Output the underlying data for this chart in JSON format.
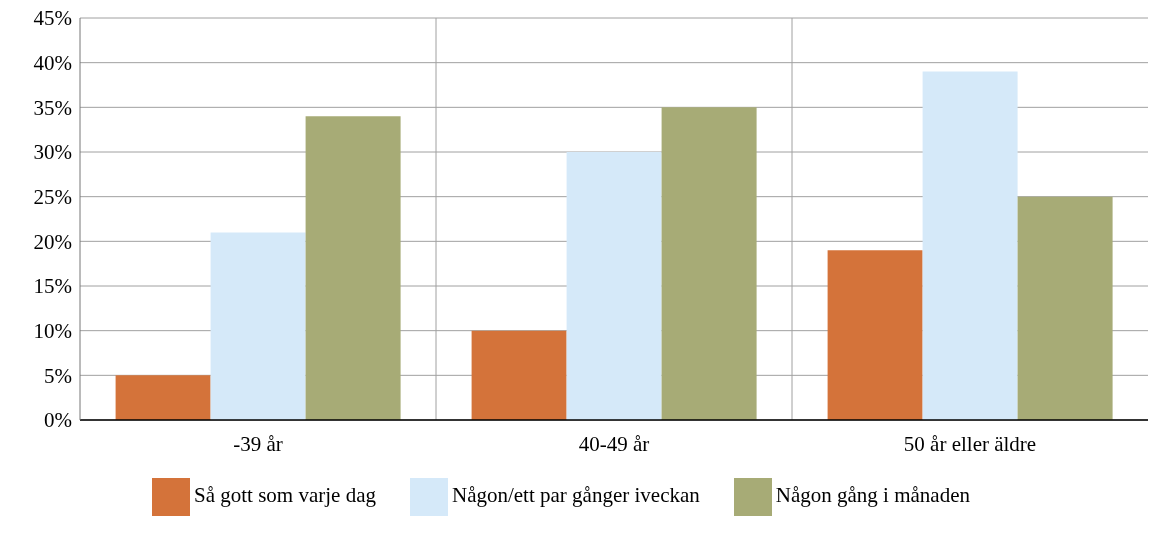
{
  "chart_data": {
    "type": "bar",
    "categories": [
      "-39 år",
      "40-49 år",
      "50 år eller äldre"
    ],
    "series": [
      {
        "name": "Så gott som varje dag",
        "color": "#d4733a",
        "values": [
          5,
          10,
          19
        ]
      },
      {
        "name": "Någon/ett par gånger iveckan",
        "color": "#d5e9f9",
        "values": [
          21,
          30,
          39
        ]
      },
      {
        "name": "Någon gång i månaden",
        "color": "#a7ab76",
        "values": [
          34,
          35,
          25
        ]
      }
    ],
    "ylim": [
      0,
      45
    ],
    "yticks": [
      {
        "value": 0,
        "label": "0%"
      },
      {
        "value": 5,
        "label": "5%"
      },
      {
        "value": 10,
        "label": "10%"
      },
      {
        "value": 15,
        "label": "15%"
      },
      {
        "value": 20,
        "label": "20%"
      },
      {
        "value": 25,
        "label": "25%"
      },
      {
        "value": 30,
        "label": "30%"
      },
      {
        "value": 35,
        "label": "35%"
      },
      {
        "value": 40,
        "label": "40%"
      },
      {
        "value": 45,
        "label": "45%"
      }
    ],
    "grid": true,
    "legend": "bottom"
  }
}
